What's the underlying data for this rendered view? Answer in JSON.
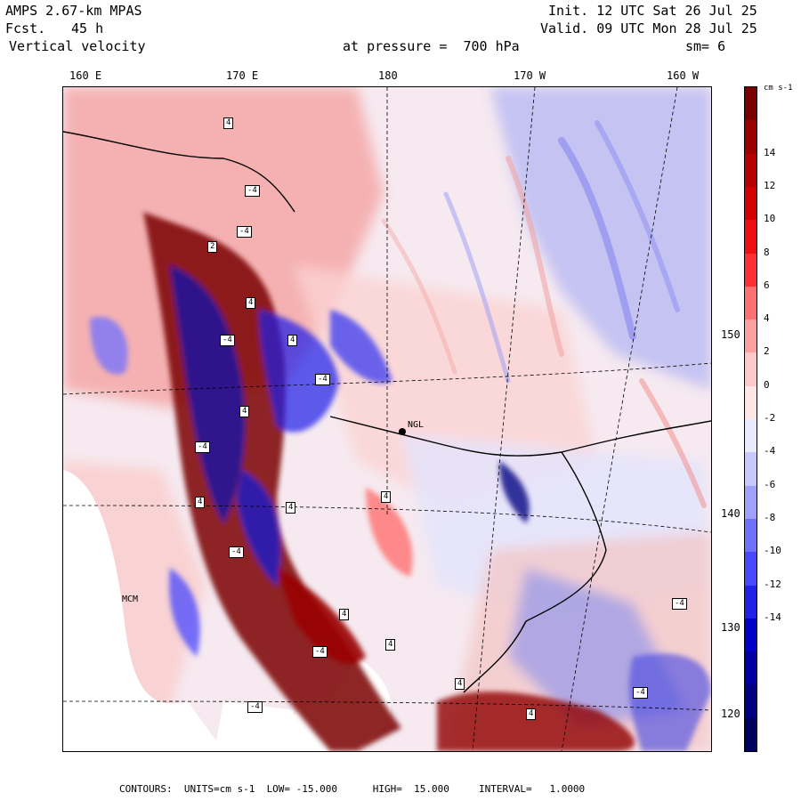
{
  "header": {
    "model": "AMPS 2.67-km MPAS",
    "fcst_label": "Fcst.",
    "fcst_value": "45 h",
    "field": "Vertical velocity",
    "init": "Init. 12 UTC Sat 26 Jul 25",
    "valid": "Valid. 09 UTC Mon 28 Jul 25",
    "level": "at pressure =  700 hPa",
    "smoothing": "sm= 6"
  },
  "map": {
    "lon_labels": [
      "160 E",
      "170 E",
      "180",
      "170 W",
      "160 W"
    ],
    "lat_labels": [
      "150 W",
      "140 W",
      "130 W",
      "120 W"
    ],
    "station_label": "MCM",
    "station_marker": "NGL",
    "field_value_boxes": [
      "4",
      "-4",
      "-4",
      "2",
      "4",
      "-4",
      "4",
      "-4",
      "4",
      "-4",
      "4",
      "-4",
      "4",
      "4",
      "-4",
      "4",
      "4",
      "-4",
      "4",
      "4",
      "-4",
      "-4"
    ]
  },
  "colorbar": {
    "units": "cm s-1",
    "ticks": [
      "14",
      "12",
      "10",
      "8",
      "6",
      "4",
      "2",
      "0",
      "-2",
      "-4",
      "-6",
      "-8",
      "-10",
      "-12",
      "-14"
    ],
    "colors": [
      "#7a0000",
      "#9a0000",
      "#b80000",
      "#d40000",
      "#ee1010",
      "#ff3030",
      "#ff7070",
      "#ffa0a0",
      "#ffc8c8",
      "#ffe6e6",
      "#eaeaff",
      "#c8c8ff",
      "#a0a0ff",
      "#7070ff",
      "#4848ff",
      "#2020e8",
      "#0000c8",
      "#0000a0",
      "#000080",
      "#000060"
    ]
  },
  "footer": {
    "text": "CONTOURS:  UNITS=cm s-1  LOW= -15.000      HIGH=  15.000     INTERVAL=   1.0000"
  },
  "chart_data": {
    "type": "heatmap",
    "variable": "Vertical velocity",
    "units": "cm s-1",
    "pressure_level_hPa": 700,
    "color_scale_range": [
      -15,
      15
    ],
    "contour_interval": 1.0,
    "low": -15.0,
    "high": 15.0
  }
}
